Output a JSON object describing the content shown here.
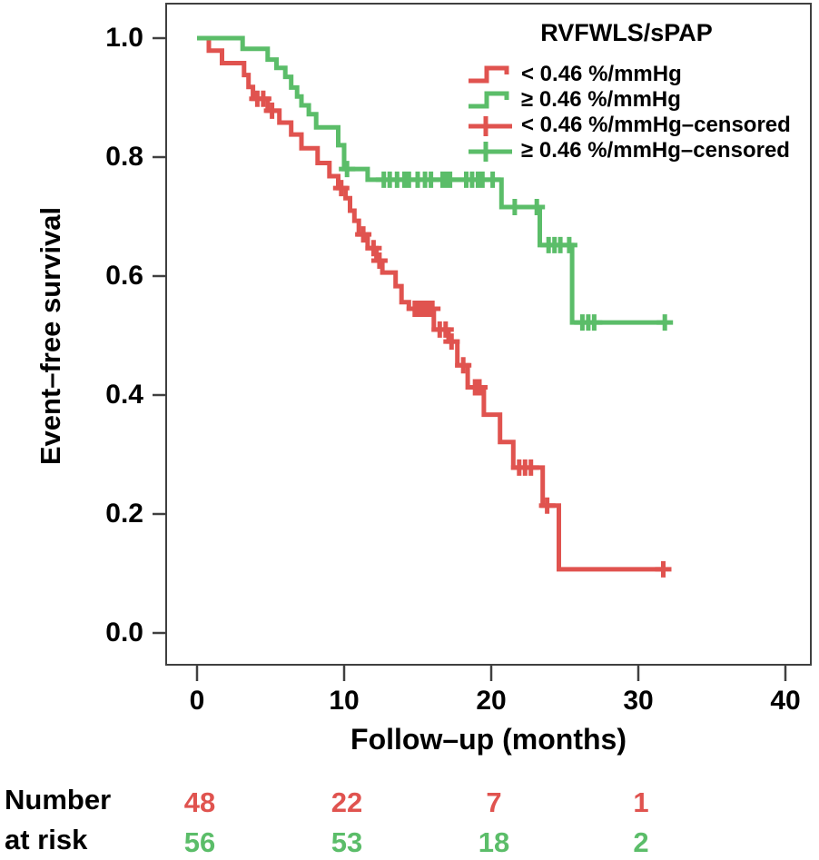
{
  "figure": {
    "y_axis": {
      "title": "Event–free survival",
      "tick_labels": [
        "1.0",
        "0.8",
        "0.6",
        "0.4",
        "0.2",
        "0.0"
      ]
    },
    "x_axis": {
      "title": "Follow–up (months)",
      "tick_labels": [
        "0",
        "10",
        "20",
        "30",
        "40"
      ]
    },
    "legend": {
      "title": "RVFWLS/sPAP",
      "entries": [
        {
          "label": "< 0.46 %/mmHg",
          "symbol": "step-line",
          "color": "#e0534f"
        },
        {
          "label": "≥ 0.46 %/mmHg",
          "symbol": "step-line",
          "color": "#5bbd69"
        },
        {
          "label": "< 0.46 %/mmHg–censored",
          "symbol": "plus",
          "color": "#e0534f"
        },
        {
          "label": "≥ 0.46 %/mmHg–censored",
          "symbol": "plus",
          "color": "#5bbd69"
        }
      ]
    },
    "at_risk": {
      "label_line1": "Number",
      "label_line2": "at risk"
    }
  },
  "chart_data": {
    "type": "line",
    "subtype": "kaplan-meier-step",
    "title": "RVFWLS/sPAP",
    "xlabel": "Follow–up (months)",
    "ylabel": "Event–free survival",
    "xlim": [
      0,
      40
    ],
    "ylim": [
      0.0,
      1.0
    ],
    "xticks": [
      0,
      10,
      20,
      30,
      40
    ],
    "yticks": [
      1.0,
      0.8,
      0.6,
      0.4,
      0.2,
      0.0
    ],
    "grid": false,
    "legend_position": "top-right-inside",
    "series": [
      {
        "id": "lt046",
        "name": "< 0.46 %/mmHg",
        "color": "#e0534f",
        "points": [
          [
            0,
            1.0
          ],
          [
            0.8,
            0.979
          ],
          [
            1.7,
            0.958
          ],
          [
            3.2,
            0.938
          ],
          [
            3.5,
            0.918
          ],
          [
            3.8,
            0.898
          ],
          [
            4.8,
            0.878
          ],
          [
            5.6,
            0.858
          ],
          [
            6.4,
            0.838
          ],
          [
            7.1,
            0.815
          ],
          [
            8.2,
            0.79
          ],
          [
            9.0,
            0.768
          ],
          [
            9.6,
            0.748
          ],
          [
            10.1,
            0.731
          ],
          [
            10.4,
            0.71
          ],
          [
            10.7,
            0.693
          ],
          [
            11.0,
            0.67
          ],
          [
            11.6,
            0.647
          ],
          [
            12.2,
            0.626
          ],
          [
            12.6,
            0.606
          ],
          [
            13.5,
            0.583
          ],
          [
            13.9,
            0.556
          ],
          [
            14.4,
            0.545
          ],
          [
            16.1,
            0.51
          ],
          [
            17.1,
            0.49
          ],
          [
            17.7,
            0.45
          ],
          [
            18.4,
            0.413
          ],
          [
            19.5,
            0.367
          ],
          [
            20.6,
            0.321
          ],
          [
            21.5,
            0.278
          ],
          [
            23.5,
            0.214
          ],
          [
            24.6,
            0.107
          ],
          [
            31.7,
            0.107
          ]
        ],
        "censored": [
          [
            4.1,
            0.898
          ],
          [
            4.5,
            0.898
          ],
          [
            5.1,
            0.878
          ],
          [
            9.8,
            0.748
          ],
          [
            11.3,
            0.67
          ],
          [
            12.0,
            0.647
          ],
          [
            12.4,
            0.626
          ],
          [
            14.8,
            0.545
          ],
          [
            15.1,
            0.545
          ],
          [
            15.4,
            0.545
          ],
          [
            15.7,
            0.545
          ],
          [
            16.0,
            0.545
          ],
          [
            16.5,
            0.51
          ],
          [
            16.9,
            0.51
          ],
          [
            17.3,
            0.49
          ],
          [
            18.1,
            0.45
          ],
          [
            18.9,
            0.413
          ],
          [
            19.2,
            0.413
          ],
          [
            21.9,
            0.278
          ],
          [
            22.3,
            0.278
          ],
          [
            22.7,
            0.278
          ],
          [
            23.8,
            0.214
          ],
          [
            31.7,
            0.107
          ]
        ]
      },
      {
        "id": "ge046",
        "name": "≥ 0.46 %/mmHg",
        "color": "#5bbd69",
        "points": [
          [
            0,
            1.0
          ],
          [
            3.1,
            0.982
          ],
          [
            4.8,
            0.964
          ],
          [
            5.4,
            0.95
          ],
          [
            6.0,
            0.935
          ],
          [
            6.4,
            0.917
          ],
          [
            6.8,
            0.902
          ],
          [
            7.1,
            0.887
          ],
          [
            7.6,
            0.872
          ],
          [
            8.1,
            0.85
          ],
          [
            9.6,
            0.82
          ],
          [
            10.0,
            0.78
          ],
          [
            11.6,
            0.762
          ],
          [
            20.7,
            0.716
          ],
          [
            23.3,
            0.652
          ],
          [
            25.5,
            0.522
          ],
          [
            31.8,
            0.522
          ]
        ],
        "censored": [
          [
            10.2,
            0.78
          ],
          [
            12.7,
            0.762
          ],
          [
            13.1,
            0.762
          ],
          [
            13.6,
            0.762
          ],
          [
            14.1,
            0.762
          ],
          [
            14.4,
            0.762
          ],
          [
            15.0,
            0.762
          ],
          [
            15.5,
            0.762
          ],
          [
            15.9,
            0.762
          ],
          [
            16.7,
            0.762
          ],
          [
            16.9,
            0.762
          ],
          [
            17.2,
            0.762
          ],
          [
            18.3,
            0.762
          ],
          [
            18.7,
            0.762
          ],
          [
            19.1,
            0.762
          ],
          [
            19.4,
            0.762
          ],
          [
            20.1,
            0.762
          ],
          [
            21.6,
            0.716
          ],
          [
            23.1,
            0.716
          ],
          [
            23.9,
            0.652
          ],
          [
            24.3,
            0.652
          ],
          [
            24.7,
            0.652
          ],
          [
            25.3,
            0.652
          ],
          [
            26.2,
            0.522
          ],
          [
            26.6,
            0.522
          ],
          [
            27.0,
            0.522
          ],
          [
            31.8,
            0.522
          ]
        ]
      }
    ],
    "number_at_risk": {
      "label": "Number at risk",
      "times": [
        0,
        10,
        20,
        30
      ],
      "rows": [
        {
          "name": "< 0.46 %/mmHg",
          "color": "#e0534f",
          "values": [
            "48",
            "22",
            "7",
            "1"
          ]
        },
        {
          "name": "≥ 0.46 %/mmHg",
          "color": "#5bbd69",
          "values": [
            "56",
            "53",
            "18",
            "2"
          ]
        }
      ]
    }
  }
}
